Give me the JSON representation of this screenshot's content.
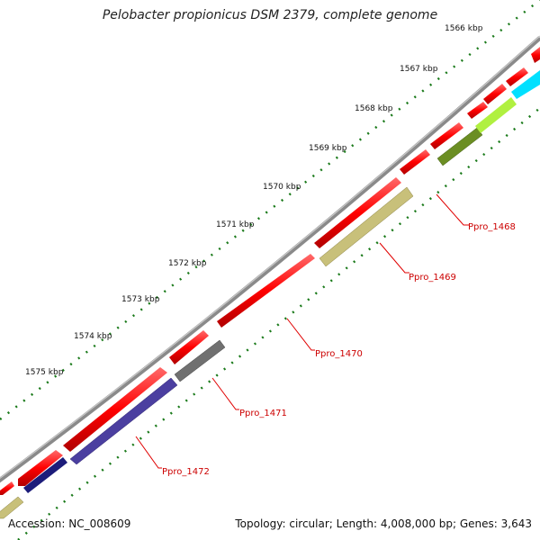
{
  "title": "Pelobacter propionicus DSM 2379, complete genome",
  "footer": {
    "accession": "Accession: NC_008609",
    "summary": "Topology: circular; Length: 4,008,000 bp; Genes: 3,643"
  },
  "scale": {
    "unit": "kbp",
    "labels": [
      "1566 kbp",
      "1567 kbp",
      "1568 kbp",
      "1569 kbp",
      "1570 kbp",
      "1571 kbp",
      "1572 kbp",
      "1573 kbp",
      "1574 kbp",
      "1575 kbp"
    ]
  },
  "gene_labels": [
    {
      "name": "Ppro_1468",
      "color": "#cc0000"
    },
    {
      "name": "Ppro_1469",
      "color": "#cc0000"
    },
    {
      "name": "Ppro_1470",
      "color": "#cc0000"
    },
    {
      "name": "Ppro_1471",
      "color": "#cc0000"
    },
    {
      "name": "Ppro_1472",
      "color": "#cc0000"
    }
  ],
  "colors": {
    "backbone": "#8a8a8a",
    "cds": "#ff0000",
    "tick_dots": "#1a7a1a",
    "feature_olive": "#6b8e23",
    "feature_khaki": "#c8c07a",
    "feature_gray": "#707070",
    "feature_navy": "#4b3fa0",
    "feature_lime": "#b0f040",
    "feature_cyan": "#00e0ff"
  }
}
